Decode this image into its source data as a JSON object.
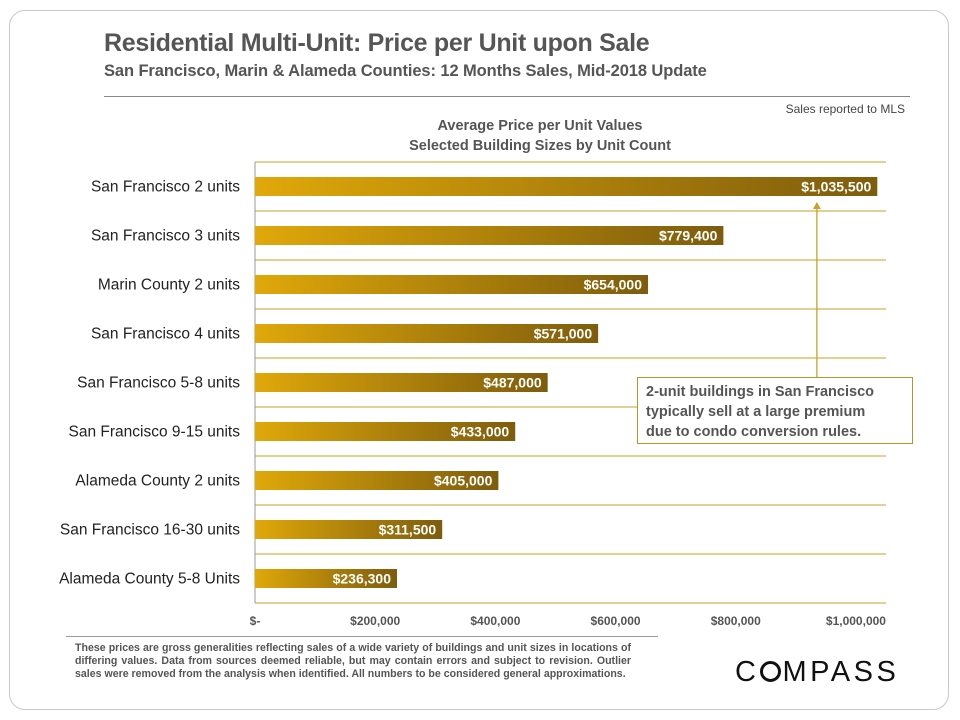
{
  "header": {
    "title": "Residential Multi-Unit: Price per Unit upon Sale",
    "subtitle": "San Francisco, Marin & Alameda Counties: 12 Months Sales, Mid-2018 Update",
    "source_note": "Sales reported to MLS"
  },
  "chart_data": {
    "type": "bar",
    "orientation": "horizontal",
    "title_lines": [
      "Average  Price  per Unit Values",
      "Selected  Building  Sizes by Unit Count"
    ],
    "categories": [
      "San Francisco 2 units",
      "San Francisco 3 units",
      "Marin County 2 units",
      "San Francisco 4 units",
      "San Francisco 5-8 units",
      "San Francisco 9-15 units",
      "Alameda County 2 units",
      "San Francisco 16-30 units",
      "Alameda County 5-8 Units"
    ],
    "values": [
      1035500,
      779400,
      654000,
      571000,
      487000,
      433000,
      405000,
      311500,
      236300
    ],
    "data_labels": [
      "$1,035,500",
      "$779,400",
      "$654,000",
      "$571,000",
      "$487,000",
      "$433,000",
      "$405,000",
      "$311,500",
      "$236,300"
    ],
    "xlim": [
      0,
      1050000
    ],
    "x_ticks": [
      0,
      200000,
      400000,
      600000,
      800000,
      1000000
    ],
    "x_tick_labels": [
      "$-",
      "$200,000",
      "$400,000",
      "$600,000",
      "$800,000",
      "$1,000,000"
    ],
    "gridlines": true,
    "colors": {
      "bar_start": "#e0a80a",
      "bar_end": "#7e5c0c",
      "grid": "#c9a227",
      "label_text": "#ffffff"
    },
    "annotation": {
      "lines": [
        "2-unit buildings in San Francisco",
        "typically sell at a large premium",
        "due to condo conversion rules."
      ],
      "points_to": "San Francisco 2 units",
      "arrow_x_value": 935000
    }
  },
  "footnote": "These prices are gross generalities reflecting sales of a wide variety of buildings and unit sizes in locations of differing values. Data from sources deemed reliable, but may contain errors and subject to revision. Outlier sales were removed from the analysis when identified. All numbers to be considered general approximations.",
  "logo": {
    "text": "COMPASS"
  }
}
